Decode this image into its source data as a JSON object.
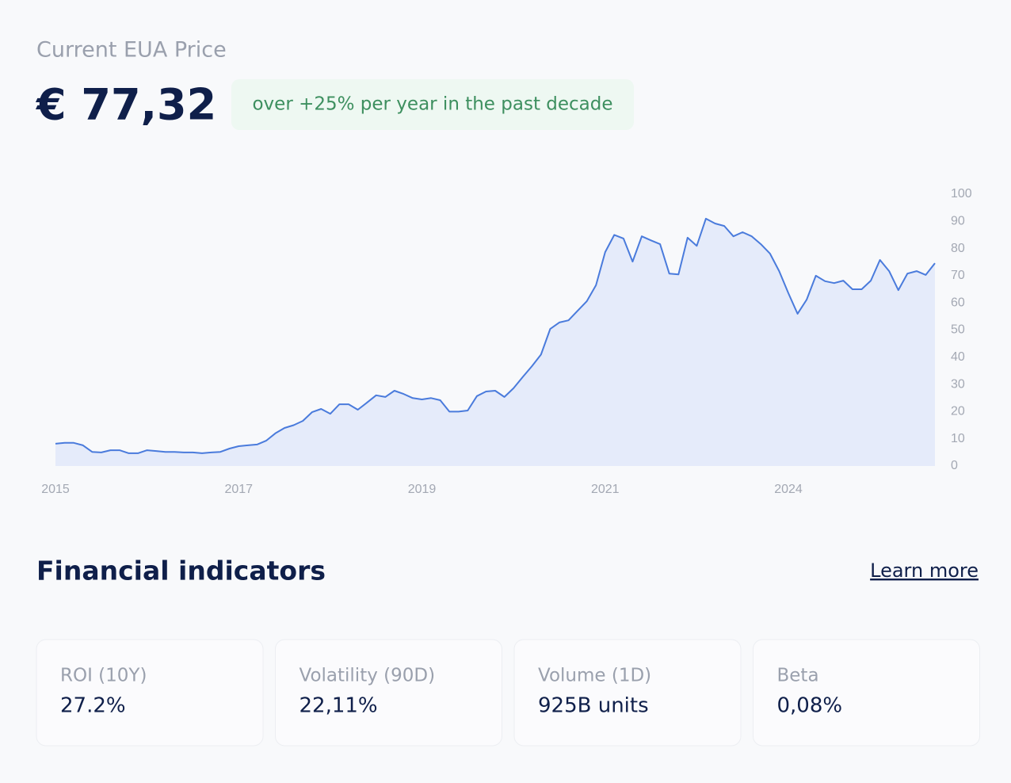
{
  "header": {
    "title": "Current EUA Price",
    "price": "€ 77,32",
    "badge": "over +25% per year in the past decade"
  },
  "chart_data": {
    "type": "line",
    "categories": [
      "2015",
      null,
      null,
      null,
      null,
      null,
      null,
      null,
      null,
      null,
      null,
      null,
      null,
      null,
      null,
      null,
      null,
      null,
      null,
      null,
      "2017",
      null,
      null,
      null,
      null,
      null,
      null,
      null,
      null,
      null,
      null,
      null,
      null,
      null,
      null,
      null,
      null,
      null,
      null,
      null,
      "2019",
      null,
      null,
      null,
      null,
      null,
      null,
      null,
      null,
      null,
      null,
      null,
      null,
      null,
      null,
      null,
      null,
      null,
      null,
      null,
      "2021",
      null,
      null,
      null,
      null,
      null,
      null,
      null,
      null,
      null,
      null,
      null,
      null,
      null,
      null,
      null,
      null,
      null,
      null,
      null,
      "2024",
      null,
      null,
      null,
      null,
      null,
      null,
      null,
      null,
      null,
      null,
      null,
      null,
      null,
      null,
      null,
      null
    ],
    "values": [
      8.2,
      8.5,
      8.5,
      7.6,
      5.2,
      5,
      5.8,
      5.8,
      4.7,
      4.7,
      5.8,
      5.5,
      5.2,
      5.2,
      5,
      5,
      4.7,
      5,
      5.2,
      6.4,
      7.3,
      7.6,
      7.9,
      9.3,
      12,
      14,
      15,
      16.6,
      19.8,
      21,
      19.2,
      22.7,
      22.7,
      20.7,
      23.3,
      26,
      25.4,
      27.7,
      26.5,
      25,
      24.5,
      25,
      24.2,
      20,
      20,
      20.4,
      25.7,
      27.4,
      27.7,
      25.4,
      28.6,
      32.7,
      36.7,
      41,
      50.4,
      52.8,
      53.6,
      57.1,
      60.6,
      66.5,
      78.7,
      85,
      83.7,
      75.2,
      84.5,
      83,
      81.6,
      70.8,
      70.5,
      84,
      81,
      91,
      89.2,
      88.3,
      84.5,
      86,
      84.5,
      81.6,
      78.1,
      71.7,
      63.6,
      56,
      61.2,
      70,
      68,
      67.3,
      68.2,
      65,
      65,
      68.2,
      75.8,
      71.7,
      64.7,
      70.8,
      71.7,
      70.3,
      74.6
    ],
    "color": "#4a7bdc",
    "fill": "#e5ebfa",
    "ylim": [
      0,
      100
    ],
    "yticks": [
      0,
      10,
      20,
      30,
      40,
      50,
      60,
      70,
      80,
      90,
      100
    ],
    "grid": false
  },
  "indicators": {
    "title": "Financial indicators",
    "link": "Learn more",
    "cards": [
      {
        "label": "ROI (10Y)",
        "value": "27.2%"
      },
      {
        "label": "Volatility (90D)",
        "value": "22,11%"
      },
      {
        "label": "Volume (1D)",
        "value": "925B units"
      },
      {
        "label": "Beta",
        "value": "0,08%"
      }
    ]
  }
}
